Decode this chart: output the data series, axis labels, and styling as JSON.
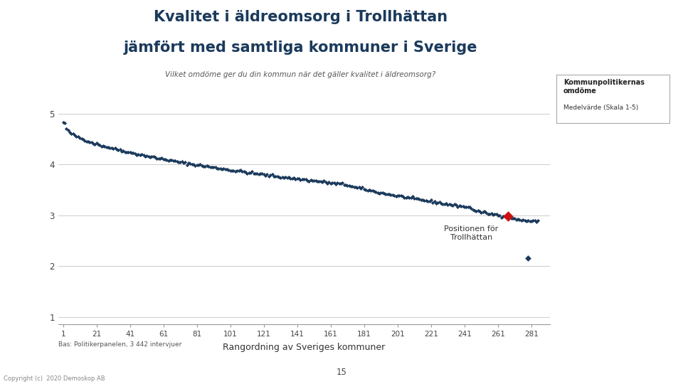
{
  "title_line1": "Kvalitet i äldreomsorg i Trollhättan",
  "title_line2": "jämfört med samtliga kommuner i Sverige",
  "subtitle": "Vilket omdöme ger du din kommun när det gäller kvalitet i äldreomsorg?",
  "xlabel": "Rangordning av Sveriges kommuner",
  "xticks": [
    1,
    21,
    41,
    61,
    81,
    101,
    121,
    141,
    161,
    181,
    201,
    221,
    241,
    261,
    281
  ],
  "yticks": [
    1,
    2,
    3,
    4,
    5
  ],
  "xlim": [
    -2,
    292
  ],
  "ylim": [
    0.85,
    5.35
  ],
  "annotation_text": "Positionen för\nTrollhättan",
  "trollhattan_x": 267,
  "trollhattan_y": 2.98,
  "outlier_x": 279,
  "outlier_y": 2.15,
  "bas_text": "Bas: Politikerpanelen, 3 442 intervjuer",
  "page_number": "15",
  "copyright_text": "Copyright (c)  2020 Demoskop AB",
  "main_dot_color": "#1b3a5c",
  "trollhattan_dot_color": "#cc1111",
  "background_color": "#ffffff",
  "title_color": "#1b3a5c",
  "subtitle_color": "#555555",
  "legend_bold": "Kommunpolitikernas\nomdöme",
  "legend_normal": "Medelvärde (Skala 1-5)"
}
